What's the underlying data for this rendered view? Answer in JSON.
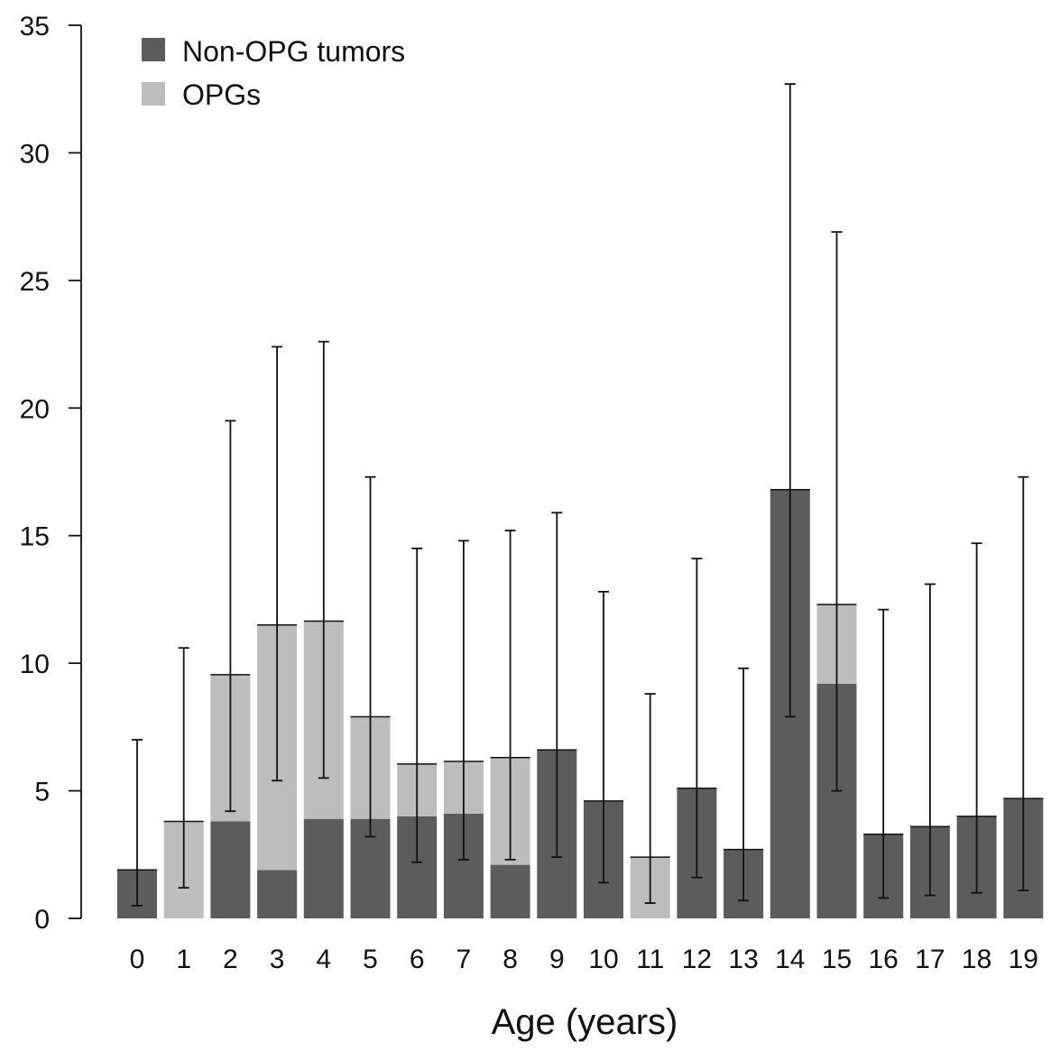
{
  "chart_data": {
    "type": "bar",
    "stacked": true,
    "title": "",
    "xlabel": "Age (years)",
    "ylabel": "",
    "categories": [
      "0",
      "1",
      "2",
      "3",
      "4",
      "5",
      "6",
      "7",
      "8",
      "9",
      "10",
      "11",
      "12",
      "13",
      "14",
      "15",
      "16",
      "17",
      "18",
      "19"
    ],
    "series": [
      {
        "name": "Non-OPG tumors",
        "color": "#5c5c5c",
        "values": [
          1.9,
          0,
          3.8,
          1.9,
          3.9,
          3.9,
          4.0,
          4.1,
          2.1,
          6.6,
          4.6,
          0,
          5.1,
          2.7,
          16.8,
          9.2,
          3.3,
          3.6,
          4.0,
          4.7
        ]
      },
      {
        "name": "OPGs",
        "color": "#bdbdbd",
        "values": [
          0,
          3.8,
          5.75,
          9.6,
          7.75,
          4.0,
          2.05,
          2.05,
          4.2,
          0,
          0,
          2.4,
          0,
          0,
          0,
          3.1,
          0,
          0,
          0,
          0
        ]
      }
    ],
    "error_bars": {
      "lower": [
        0.5,
        1.2,
        4.2,
        5.4,
        5.5,
        3.2,
        2.2,
        2.3,
        2.3,
        2.4,
        1.4,
        0.6,
        1.6,
        0.7,
        7.9,
        5.0,
        0.8,
        0.9,
        1.0,
        1.1
      ],
      "upper": [
        7.0,
        10.6,
        19.5,
        22.4,
        22.6,
        17.3,
        14.5,
        14.8,
        15.2,
        15.9,
        12.8,
        8.8,
        14.1,
        9.8,
        32.7,
        26.9,
        12.1,
        13.1,
        14.7,
        17.3
      ]
    },
    "ylim": [
      0,
      35
    ],
    "yticks": [
      0,
      5,
      10,
      15,
      20,
      25,
      30,
      35
    ],
    "grid": false,
    "legend_position": "top-left"
  }
}
